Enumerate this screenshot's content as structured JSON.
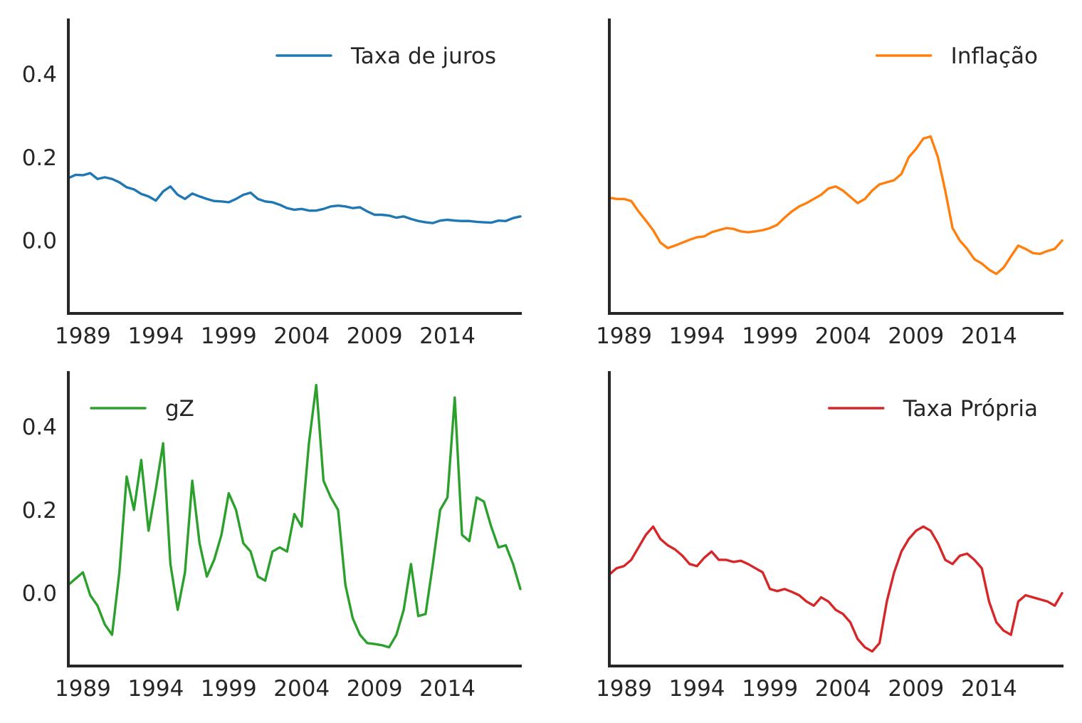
{
  "chart_data": [
    {
      "type": "line",
      "panel": "top-left",
      "title": "",
      "xlabel": "",
      "ylabel": "",
      "xlim": [
        1988,
        2019
      ],
      "ylim": [
        -0.175,
        0.53
      ],
      "x_ticks": [
        1989,
        1994,
        1999,
        2004,
        2009,
        2014
      ],
      "x_tick_labels": [
        "1989",
        "1994",
        "1999",
        "2004",
        "2009",
        "2014"
      ],
      "y_ticks": [
        0.0,
        0.2,
        0.4
      ],
      "y_tick_labels": [
        "0.0",
        "0.2",
        "0.4"
      ],
      "y_tick_labels_visible": true,
      "grid": false,
      "legend_position": "top-right",
      "series": [
        {
          "name": "Taxa de juros",
          "color": "#1f77b4",
          "x": [
            1988.0,
            1988.5,
            1989.0,
            1989.5,
            1990.0,
            1990.5,
            1991.0,
            1991.5,
            1992.0,
            1992.5,
            1993.0,
            1993.5,
            1994.0,
            1994.5,
            1995.0,
            1995.5,
            1996.0,
            1996.5,
            1997.0,
            1997.5,
            1998.0,
            1998.5,
            1999.0,
            1999.5,
            2000.0,
            2000.5,
            2001.0,
            2001.5,
            2002.0,
            2002.5,
            2003.0,
            2003.5,
            2004.0,
            2004.5,
            2005.0,
            2005.5,
            2006.0,
            2006.5,
            2007.0,
            2007.5,
            2008.0,
            2008.5,
            2009.0,
            2009.5,
            2010.0,
            2010.5,
            2011.0,
            2011.5,
            2012.0,
            2012.5,
            2013.0,
            2013.5,
            2014.0,
            2014.5,
            2015.0,
            2015.5,
            2016.0,
            2016.5,
            2017.0,
            2017.5,
            2018.0,
            2018.5,
            2019.0
          ],
          "y": [
            0.15,
            0.158,
            0.157,
            0.162,
            0.148,
            0.152,
            0.148,
            0.14,
            0.128,
            0.123,
            0.112,
            0.106,
            0.096,
            0.118,
            0.13,
            0.11,
            0.1,
            0.113,
            0.106,
            0.1,
            0.095,
            0.094,
            0.092,
            0.1,
            0.11,
            0.115,
            0.1,
            0.094,
            0.092,
            0.086,
            0.078,
            0.074,
            0.076,
            0.072,
            0.072,
            0.076,
            0.082,
            0.084,
            0.082,
            0.078,
            0.08,
            0.07,
            0.062,
            0.062,
            0.06,
            0.055,
            0.058,
            0.052,
            0.047,
            0.044,
            0.042,
            0.048,
            0.05,
            0.048,
            0.047,
            0.047,
            0.045,
            0.044,
            0.043,
            0.048,
            0.047,
            0.054,
            0.058
          ]
        }
      ]
    },
    {
      "type": "line",
      "panel": "top-right",
      "title": "",
      "xlabel": "",
      "ylabel": "",
      "xlim": [
        1988,
        2019
      ],
      "ylim": [
        -0.175,
        0.53
      ],
      "x_ticks": [
        1989,
        1994,
        1999,
        2004,
        2009,
        2014
      ],
      "x_tick_labels": [
        "1989",
        "1994",
        "1999",
        "2004",
        "2009",
        "2014"
      ],
      "y_ticks": [
        0.0,
        0.2,
        0.4
      ],
      "y_tick_labels": [],
      "y_tick_labels_visible": false,
      "grid": false,
      "legend_position": "top-right",
      "series": [
        {
          "name": "Inflação",
          "color": "#ff7f0e",
          "x": [
            1988.0,
            1988.5,
            1989.0,
            1989.5,
            1990.0,
            1990.5,
            1991.0,
            1991.5,
            1992.0,
            1992.5,
            1993.0,
            1993.5,
            1994.0,
            1994.5,
            1995.0,
            1995.5,
            1996.0,
            1996.5,
            1997.0,
            1997.5,
            1998.0,
            1998.5,
            1999.0,
            1999.5,
            2000.0,
            2000.5,
            2001.0,
            2001.5,
            2002.0,
            2002.5,
            2003.0,
            2003.5,
            2004.0,
            2004.5,
            2005.0,
            2005.5,
            2006.0,
            2006.5,
            2007.0,
            2007.5,
            2008.0,
            2008.5,
            2009.0,
            2009.5,
            2010.0,
            2010.5,
            2011.0,
            2011.5,
            2012.0,
            2012.5,
            2013.0,
            2013.5,
            2014.0,
            2014.5,
            2015.0,
            2015.5,
            2016.0,
            2016.5,
            2017.0,
            2017.5,
            2018.0,
            2018.5,
            2019.0
          ],
          "y": [
            0.103,
            0.1,
            0.1,
            0.095,
            0.07,
            0.048,
            0.025,
            -0.005,
            -0.018,
            -0.012,
            -0.005,
            0.002,
            0.008,
            0.01,
            0.02,
            0.025,
            0.03,
            0.028,
            0.022,
            0.02,
            0.022,
            0.025,
            0.03,
            0.038,
            0.055,
            0.07,
            0.082,
            0.09,
            0.1,
            0.11,
            0.125,
            0.13,
            0.12,
            0.105,
            0.09,
            0.1,
            0.12,
            0.135,
            0.14,
            0.145,
            0.16,
            0.2,
            0.22,
            0.245,
            0.25,
            0.2,
            0.12,
            0.03,
            0.0,
            -0.02,
            -0.045,
            -0.055,
            -0.07,
            -0.08,
            -0.065,
            -0.038,
            -0.012,
            -0.02,
            -0.03,
            -0.032,
            -0.025,
            -0.02,
            0.0
          ]
        }
      ]
    },
    {
      "type": "line",
      "panel": "bottom-left",
      "title": "",
      "xlabel": "",
      "ylabel": "",
      "xlim": [
        1988,
        2019
      ],
      "ylim": [
        -0.175,
        0.53
      ],
      "x_ticks": [
        1989,
        1994,
        1999,
        2004,
        2009,
        2014
      ],
      "x_tick_labels": [
        "1989",
        "1994",
        "1999",
        "2004",
        "2009",
        "2014"
      ],
      "y_ticks": [
        0.0,
        0.2,
        0.4
      ],
      "y_tick_labels": [
        "0.0",
        "0.2",
        "0.4"
      ],
      "y_tick_labels_visible": true,
      "grid": false,
      "legend_position": "top-left",
      "series": [
        {
          "name": "gZ",
          "color": "#2ca02c",
          "x": [
            1988.0,
            1988.5,
            1989.0,
            1989.5,
            1990.0,
            1990.5,
            1991.0,
            1991.5,
            1992.0,
            1992.5,
            1993.0,
            1993.5,
            1994.0,
            1994.5,
            1995.0,
            1995.5,
            1996.0,
            1996.5,
            1997.0,
            1997.5,
            1998.0,
            1998.5,
            1999.0,
            1999.5,
            2000.0,
            2000.5,
            2001.0,
            2001.5,
            2002.0,
            2002.5,
            2003.0,
            2003.5,
            2004.0,
            2004.5,
            2005.0,
            2005.5,
            2006.0,
            2006.5,
            2007.0,
            2007.5,
            2008.0,
            2008.5,
            2009.0,
            2009.5,
            2010.0,
            2010.5,
            2011.0,
            2011.5,
            2012.0,
            2012.5,
            2013.0,
            2013.5,
            2014.0,
            2014.5,
            2015.0,
            2015.5,
            2016.0,
            2016.5,
            2017.0,
            2017.5,
            2018.0,
            2018.5,
            2019.0
          ],
          "y": [
            0.02,
            0.035,
            0.05,
            -0.005,
            -0.03,
            -0.075,
            -0.1,
            0.05,
            0.28,
            0.2,
            0.32,
            0.15,
            0.25,
            0.36,
            0.07,
            -0.04,
            0.05,
            0.27,
            0.12,
            0.04,
            0.08,
            0.14,
            0.24,
            0.2,
            0.12,
            0.1,
            0.04,
            0.03,
            0.1,
            0.11,
            0.1,
            0.19,
            0.16,
            0.36,
            0.5,
            0.27,
            0.23,
            0.2,
            0.02,
            -0.06,
            -0.1,
            -0.12,
            -0.122,
            -0.125,
            -0.13,
            -0.1,
            -0.04,
            0.07,
            -0.055,
            -0.05,
            0.07,
            0.2,
            0.23,
            0.47,
            0.14,
            0.125,
            0.23,
            0.22,
            0.16,
            0.11,
            0.115,
            0.07,
            0.01
          ]
        }
      ]
    },
    {
      "type": "line",
      "panel": "bottom-right",
      "title": "",
      "xlabel": "",
      "ylabel": "",
      "xlim": [
        1988,
        2019
      ],
      "ylim": [
        -0.175,
        0.53
      ],
      "x_ticks": [
        1989,
        1994,
        1999,
        2004,
        2009,
        2014
      ],
      "x_tick_labels": [
        "1989",
        "1994",
        "1999",
        "2004",
        "2009",
        "2014"
      ],
      "y_ticks": [
        0.0,
        0.2,
        0.4
      ],
      "y_tick_labels": [],
      "y_tick_labels_visible": false,
      "grid": false,
      "legend_position": "top-right",
      "series": [
        {
          "name": "Taxa Própria",
          "color": "#d62728",
          "x": [
            1988.0,
            1988.5,
            1989.0,
            1989.5,
            1990.0,
            1990.5,
            1991.0,
            1991.5,
            1992.0,
            1992.5,
            1993.0,
            1993.5,
            1994.0,
            1994.5,
            1995.0,
            1995.5,
            1996.0,
            1996.5,
            1997.0,
            1997.5,
            1998.0,
            1998.5,
            1999.0,
            1999.5,
            2000.0,
            2000.5,
            2001.0,
            2001.5,
            2002.0,
            2002.5,
            2003.0,
            2003.5,
            2004.0,
            2004.5,
            2005.0,
            2005.5,
            2006.0,
            2006.5,
            2007.0,
            2007.5,
            2008.0,
            2008.5,
            2009.0,
            2009.5,
            2010.0,
            2010.5,
            2011.0,
            2011.5,
            2012.0,
            2012.5,
            2013.0,
            2013.5,
            2014.0,
            2014.5,
            2015.0,
            2015.5,
            2016.0,
            2016.5,
            2017.0,
            2017.5,
            2018.0,
            2018.5,
            2019.0
          ],
          "y": [
            0.045,
            0.06,
            0.065,
            0.08,
            0.11,
            0.14,
            0.16,
            0.13,
            0.115,
            0.105,
            0.09,
            0.07,
            0.065,
            0.085,
            0.1,
            0.08,
            0.08,
            0.075,
            0.078,
            0.07,
            0.06,
            0.05,
            0.01,
            0.005,
            0.01,
            0.003,
            -0.005,
            -0.02,
            -0.03,
            -0.01,
            -0.02,
            -0.04,
            -0.05,
            -0.07,
            -0.11,
            -0.13,
            -0.14,
            -0.12,
            -0.02,
            0.05,
            0.1,
            0.13,
            0.15,
            0.16,
            0.15,
            0.12,
            0.08,
            0.07,
            0.09,
            0.095,
            0.08,
            0.06,
            -0.02,
            -0.07,
            -0.09,
            -0.1,
            -0.02,
            -0.005,
            -0.01,
            -0.015,
            -0.02,
            -0.03,
            0.0
          ]
        }
      ]
    }
  ]
}
